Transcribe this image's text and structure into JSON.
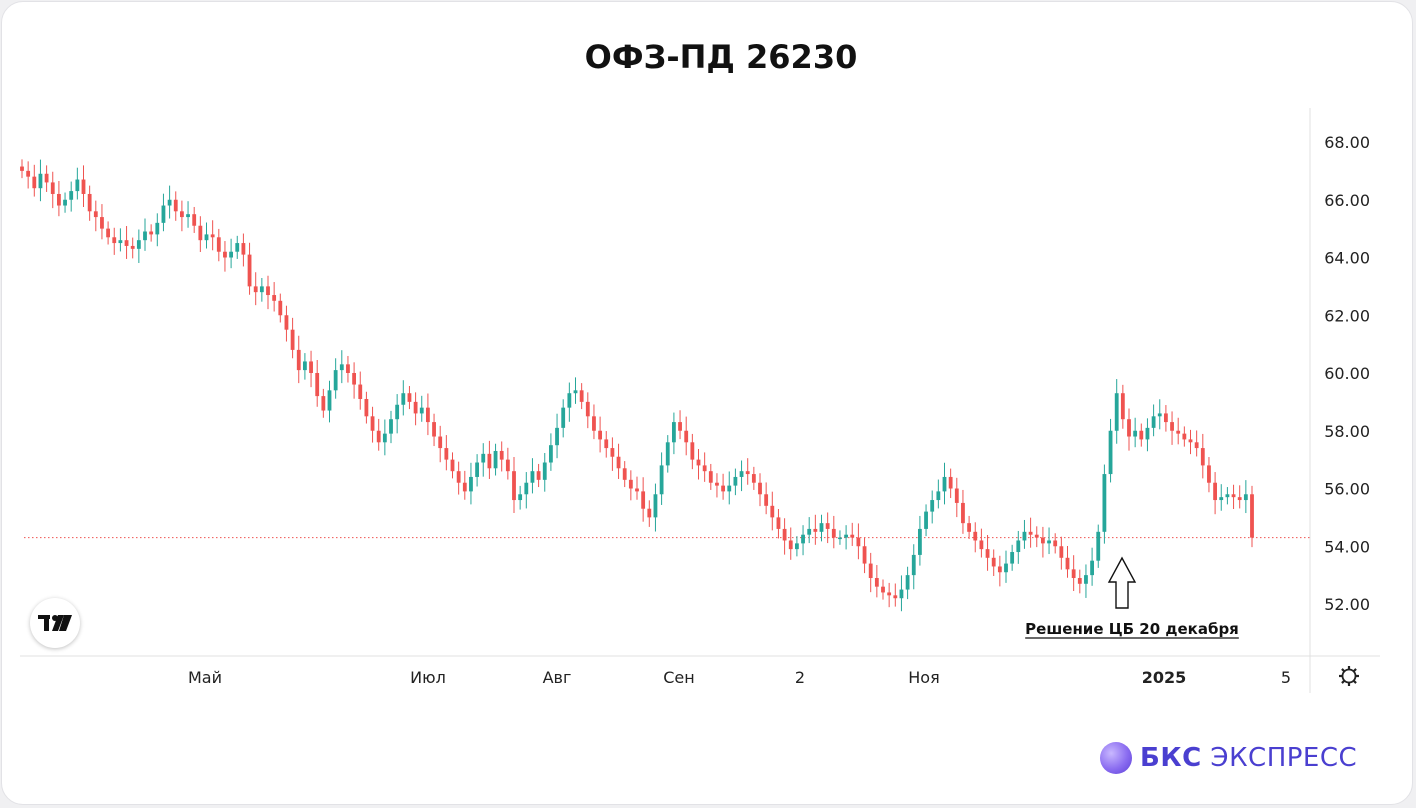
{
  "chart_data": {
    "type": "candlestick",
    "title": "ОФЗ-ПД 26230",
    "ylim": [
      51,
      69
    ],
    "yticks": [
      "68.00",
      "66.00",
      "64.00",
      "62.00",
      "60.00",
      "58.00",
      "56.00",
      "54.00",
      "52.00"
    ],
    "xticks": [
      {
        "label": "Май",
        "bold": false
      },
      {
        "label": "Июл",
        "bold": false
      },
      {
        "label": "Авг",
        "bold": false
      },
      {
        "label": "Сен",
        "bold": false
      },
      {
        "label": "2",
        "bold": false
      },
      {
        "label": "Ноя",
        "bold": false
      },
      {
        "label": "2025",
        "bold": true
      },
      {
        "label": "5",
        "bold": false
      }
    ],
    "last_price": 54.3,
    "annotation": "Решение ЦБ 20 декабря",
    "colors": {
      "up": "#26a69a",
      "down": "#ef5350",
      "price_line": "#ef5350"
    },
    "closes": [
      67.0,
      66.8,
      66.4,
      66.9,
      66.6,
      66.2,
      65.8,
      66.0,
      66.3,
      66.7,
      66.2,
      65.6,
      65.4,
      65.0,
      64.7,
      64.5,
      64.6,
      64.4,
      64.3,
      64.6,
      64.9,
      64.8,
      65.2,
      65.8,
      66.0,
      65.6,
      65.4,
      65.5,
      65.1,
      64.6,
      64.8,
      64.7,
      64.2,
      64.0,
      64.2,
      64.5,
      64.1,
      63.0,
      62.8,
      63.0,
      62.7,
      62.5,
      62.0,
      61.5,
      60.8,
      60.1,
      60.4,
      60.0,
      59.2,
      58.7,
      59.4,
      60.1,
      60.3,
      60.0,
      59.6,
      59.1,
      58.5,
      58.0,
      57.6,
      57.9,
      58.4,
      58.9,
      59.3,
      59.0,
      58.6,
      58.8,
      58.3,
      57.8,
      57.4,
      57.0,
      56.6,
      56.2,
      55.9,
      56.4,
      56.9,
      57.2,
      56.7,
      57.3,
      57.0,
      56.6,
      55.6,
      55.8,
      56.2,
      56.6,
      56.3,
      56.9,
      57.5,
      58.1,
      58.8,
      59.3,
      59.4,
      59.0,
      58.5,
      58.0,
      57.7,
      57.4,
      57.1,
      56.7,
      56.3,
      56.0,
      55.9,
      55.3,
      55.0,
      55.8,
      56.8,
      57.6,
      58.3,
      58.0,
      57.6,
      57.0,
      56.8,
      56.6,
      56.2,
      56.1,
      55.9,
      56.1,
      56.4,
      56.6,
      56.5,
      56.2,
      55.8,
      55.4,
      55.0,
      54.6,
      54.2,
      53.9,
      54.1,
      54.4,
      54.6,
      54.5,
      54.8,
      54.6,
      54.3,
      54.3,
      54.4,
      54.3,
      54.0,
      53.4,
      52.9,
      52.6,
      52.4,
      52.3,
      52.2,
      52.5,
      53.0,
      53.7,
      54.6,
      55.2,
      55.6,
      55.9,
      56.4,
      56.0,
      55.5,
      54.8,
      54.5,
      54.2,
      53.9,
      53.6,
      53.3,
      53.1,
      53.4,
      53.8,
      54.2,
      54.5,
      54.4,
      54.3,
      54.1,
      54.2,
      54.0,
      53.6,
      53.2,
      52.9,
      52.7,
      53.0,
      53.5,
      54.5,
      56.5,
      58.0,
      59.3,
      58.4,
      57.8,
      58.0,
      57.7,
      58.1,
      58.5,
      58.6,
      58.3,
      58.0,
      57.9,
      57.7,
      57.6,
      57.4,
      56.8,
      56.2,
      55.6,
      55.7,
      55.8,
      55.7,
      55.6,
      55.8,
      54.3
    ]
  },
  "brand": {
    "name": "БКС ЭКСПРЕСС",
    "bold_part": "БКС",
    "rest": "ЭКСПРЕСС"
  },
  "tv_badge": "TV"
}
